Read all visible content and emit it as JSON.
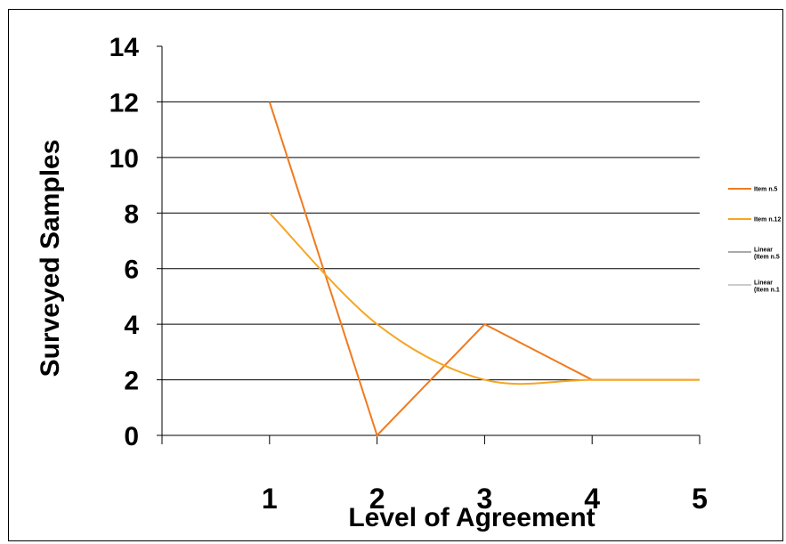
{
  "chart_data": {
    "type": "line",
    "title": "",
    "xlabel": "Level of Agreement",
    "ylabel": "Surveyed Samples",
    "categories": [
      "1",
      "2",
      "3",
      "4",
      "5"
    ],
    "ylim": [
      0,
      14
    ],
    "yticks": [
      "0",
      "2",
      "4",
      "6",
      "8",
      "10",
      "12",
      "14"
    ],
    "grid": true,
    "legend_position": "right",
    "series": [
      {
        "name": "Item n.5",
        "values": [
          12,
          0,
          4,
          2,
          2
        ],
        "color": "#f07a1e",
        "style": "straight"
      },
      {
        "name": "Item n.12",
        "values": [
          8,
          4,
          2,
          2,
          2
        ],
        "color": "#f5a623",
        "style": "smooth"
      }
    ],
    "legend": [
      {
        "label_lines": [
          "Item n.5"
        ],
        "color": "#f07a1e"
      },
      {
        "label_lines": [
          "Item n.12"
        ],
        "color": "#f5a623"
      },
      {
        "label_lines": [
          "Linear",
          "(Item n.5"
        ],
        "color": "#555555"
      },
      {
        "label_lines": [
          "Linear",
          "(Item n.1"
        ],
        "color": "#999999"
      }
    ]
  }
}
